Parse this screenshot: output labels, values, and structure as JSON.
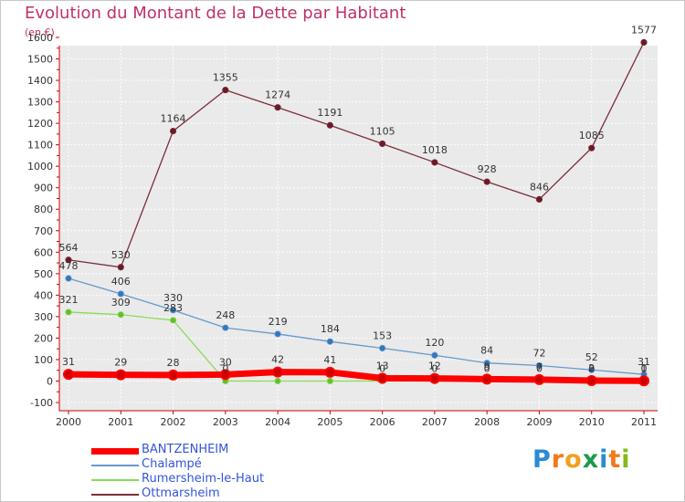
{
  "header": {
    "title": "Evolution du Montant de la Dette par Habitant",
    "unit": "(en €)"
  },
  "brand": {
    "letters": [
      "P",
      "r",
      "o",
      "x",
      "i",
      "t",
      "i"
    ],
    "colors": [
      "#2a8ad4",
      "#f07a1a",
      "#f0a020",
      "#1a9a4a",
      "#2a8ad4",
      "#f07a1a",
      "#86b81a"
    ]
  },
  "chart_data": {
    "type": "line",
    "x": [
      "2000",
      "2001",
      "2002",
      "2003",
      "2004",
      "2005",
      "2006",
      "2007",
      "2008",
      "2009",
      "2010",
      "2011"
    ],
    "ylim": [
      -100,
      1600
    ],
    "yticks": [
      "-100",
      "0",
      "100",
      "200",
      "300",
      "400",
      "500",
      "600",
      "700",
      "800",
      "900",
      "1000",
      "1100",
      "1200",
      "1300",
      "1400",
      "1500",
      "1600"
    ],
    "grid": true,
    "legend_position": "bottom-left",
    "series": [
      {
        "name": "BANTZENHEIM",
        "color": "#ff0000",
        "marker": "#cc0000",
        "values": [
          31,
          29,
          28,
          30,
          42,
          41,
          13,
          12,
          9,
          7,
          2,
          1
        ],
        "labels": [
          "31",
          "29",
          "28",
          "30",
          "42",
          "41",
          "13",
          "12",
          "9",
          "7",
          "2",
          "1"
        ]
      },
      {
        "name": "Chalampé",
        "color": "#6699cc",
        "marker": "#3377bb",
        "values": [
          478,
          406,
          330,
          248,
          219,
          184,
          153,
          120,
          84,
          72,
          52,
          31
        ],
        "labels": [
          "478",
          "406",
          "330",
          "248",
          "219",
          "184",
          "153",
          "120",
          "84",
          "72",
          "52",
          "31"
        ]
      },
      {
        "name": "Rumersheim-le-Haut",
        "color": "#88dd55",
        "marker": "#66bb33",
        "values": [
          321,
          309,
          283,
          0,
          0,
          0,
          0,
          0,
          0,
          0,
          0,
          0
        ],
        "labels": [
          "321",
          "309",
          "283",
          "0",
          "",
          "",
          "0",
          "0",
          "0",
          "0",
          "0",
          "0"
        ]
      },
      {
        "name": "Ottmarsheim",
        "color": "#7a2e3a",
        "marker": "#6a1a28",
        "values": [
          564,
          530,
          1164,
          1355,
          1274,
          1191,
          1105,
          1018,
          928,
          846,
          1085,
          1577
        ],
        "labels": [
          "564",
          "530",
          "1164",
          "1355",
          "1274",
          "1191",
          "1105",
          "1018",
          "928",
          "846",
          "1085",
          "1577"
        ]
      }
    ]
  }
}
